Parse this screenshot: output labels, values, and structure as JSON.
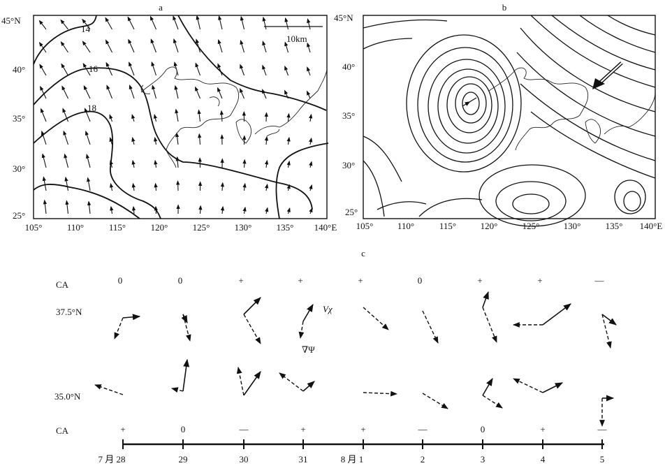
{
  "panel_a": {
    "label": "a",
    "scale_label": "10km",
    "lat_ticks": [
      "45°N",
      "40°",
      "35°",
      "30°",
      "25°"
    ],
    "lon_ticks": [
      "105°",
      "110°",
      "115°",
      "120°",
      "125°",
      "130°",
      "135°",
      "140°E"
    ],
    "contour_labels": [
      "14",
      "16",
      "18"
    ]
  },
  "panel_b": {
    "label": "b",
    "lat_ticks": [
      "45°N",
      "40°",
      "35°",
      "30°",
      "25°"
    ],
    "lon_ticks": [
      "105°",
      "110°",
      "115°",
      "120°",
      "125°",
      "130°",
      "135°",
      "140°E"
    ]
  },
  "panel_c": {
    "label": "c",
    "row_upper_label": "37.5°N",
    "row_lower_label": "35.0°N",
    "ca_label_upper": "CA",
    "ca_label_lower": "CA",
    "legend_vx": "Vχ",
    "legend_grad": "∇Ψ",
    "ca_upper": [
      "0",
      "0",
      "+",
      "+",
      "+",
      "0",
      "+",
      "+",
      "—"
    ],
    "ca_lower": [
      "+",
      "0",
      "—",
      "+",
      "+",
      "—",
      "0",
      "+",
      "—"
    ],
    "date_labels": [
      "7 月 28",
      "29",
      "30",
      "31",
      "8 月 1",
      "2",
      "3",
      "4",
      "5"
    ]
  }
}
